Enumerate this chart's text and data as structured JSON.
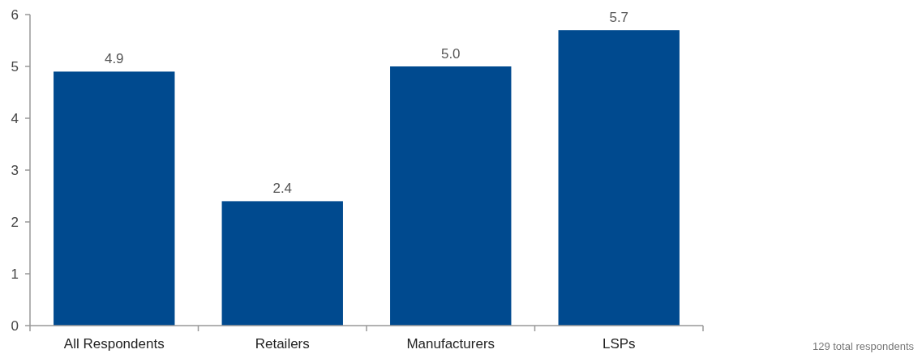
{
  "chart_data": {
    "type": "bar",
    "categories": [
      "All Respondents",
      "Retailers",
      "Manufacturers",
      "LSPs"
    ],
    "values": [
      4.9,
      2.4,
      5.0,
      5.7
    ],
    "value_labels": [
      "4.9",
      "2.4",
      "5.0",
      "5.7"
    ],
    "color": "#004a8f",
    "ylim": [
      0,
      6
    ],
    "yticks": [
      0,
      1,
      2,
      3,
      4,
      5,
      6
    ],
    "grid": false,
    "annotations": [
      "129 total respondents"
    ]
  }
}
